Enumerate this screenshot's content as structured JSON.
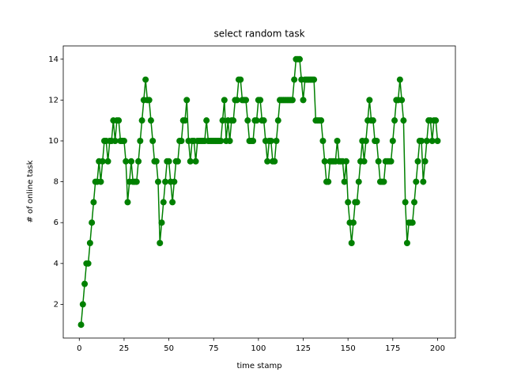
{
  "chart_data": {
    "type": "line",
    "title": "select random task",
    "x_label": "time stamp",
    "y_label": "# of online task",
    "series": [
      {
        "color": "#008000",
        "x": [
          1,
          2,
          3,
          4,
          5,
          6,
          7,
          8,
          9,
          10,
          11,
          12,
          13,
          14,
          15,
          16,
          17,
          18,
          19,
          20,
          21,
          22,
          23,
          24,
          25,
          26,
          27,
          28,
          29,
          30,
          31,
          32,
          33,
          34,
          35,
          36,
          37,
          38,
          39,
          40,
          41,
          42,
          43,
          44,
          45,
          46,
          47,
          48,
          49,
          50,
          51,
          52,
          53,
          54,
          55,
          56,
          57,
          58,
          59,
          60,
          61,
          62,
          63,
          64,
          65,
          66,
          67,
          68,
          69,
          70,
          71,
          72,
          73,
          74,
          75,
          76,
          77,
          78,
          79,
          80,
          81,
          82,
          83,
          84,
          85,
          86,
          87,
          88,
          89,
          90,
          91,
          92,
          93,
          94,
          95,
          96,
          97,
          98,
          99,
          100,
          101,
          102,
          103,
          104,
          105,
          106,
          107,
          108,
          109,
          110,
          111,
          112,
          113,
          114,
          115,
          116,
          117,
          118,
          119,
          120,
          121,
          122,
          123,
          124,
          125,
          126,
          127,
          128,
          129,
          130,
          131,
          132,
          133,
          134,
          135,
          136,
          137,
          138,
          139,
          140,
          141,
          142,
          143,
          144,
          145,
          146,
          147,
          148,
          149,
          150,
          151,
          152,
          153,
          154,
          155,
          156,
          157,
          158,
          159,
          160,
          161,
          162,
          163,
          164,
          165,
          166,
          167,
          168,
          169,
          170,
          171,
          172,
          173,
          174,
          175,
          176,
          177,
          178,
          179,
          180,
          181,
          182,
          183,
          184,
          185,
          186,
          187,
          188,
          189,
          190,
          191,
          192,
          193,
          194,
          195,
          196,
          197,
          198,
          199,
          200
        ],
        "values": [
          1,
          2,
          3,
          4,
          4,
          5,
          6,
          7,
          8,
          8,
          9,
          8,
          9,
          10,
          10,
          9,
          10,
          10,
          11,
          10,
          11,
          11,
          10,
          10,
          10,
          9,
          7,
          8,
          9,
          8,
          8,
          8,
          9,
          10,
          11,
          12,
          13,
          12,
          12,
          11,
          10,
          9,
          9,
          8,
          5,
          6,
          7,
          8,
          9,
          9,
          8,
          7,
          8,
          9,
          9,
          10,
          10,
          11,
          11,
          12,
          10,
          9,
          10,
          10,
          9,
          10,
          10,
          10,
          10,
          10,
          11,
          10,
          10,
          10,
          10,
          10,
          10,
          10,
          10,
          11,
          12,
          10,
          11,
          10,
          11,
          11,
          12,
          12,
          13,
          13,
          12,
          12,
          12,
          11,
          10,
          10,
          10,
          11,
          11,
          12,
          12,
          11,
          11,
          10,
          9,
          10,
          10,
          9,
          9,
          10,
          11,
          12,
          12,
          12,
          12,
          12,
          12,
          12,
          12,
          13,
          14,
          14,
          14,
          13,
          12,
          13,
          13,
          13,
          13,
          13,
          13,
          11,
          11,
          11,
          11,
          10,
          9,
          8,
          8,
          9,
          9,
          9,
          9,
          10,
          9,
          9,
          9,
          8,
          9,
          7,
          6,
          5,
          6,
          7,
          7,
          8,
          9,
          10,
          9,
          10,
          11,
          12,
          11,
          11,
          10,
          10,
          9,
          8,
          8,
          8,
          9,
          9,
          9,
          9,
          10,
          11,
          12,
          12,
          13,
          12,
          11,
          7,
          5,
          6,
          6,
          6,
          7,
          8,
          9,
          10,
          10,
          8,
          9,
          10,
          11,
          11,
          10,
          11,
          11,
          10
        ]
      }
    ],
    "xlim": [
      -8.95,
      209.95
    ],
    "xticks": [
      0,
      25,
      50,
      75,
      100,
      125,
      150,
      175,
      200
    ],
    "ylim": [
      0.35,
      14.65
    ],
    "yticks": [
      2,
      4,
      6,
      8,
      10,
      12,
      14
    ]
  }
}
